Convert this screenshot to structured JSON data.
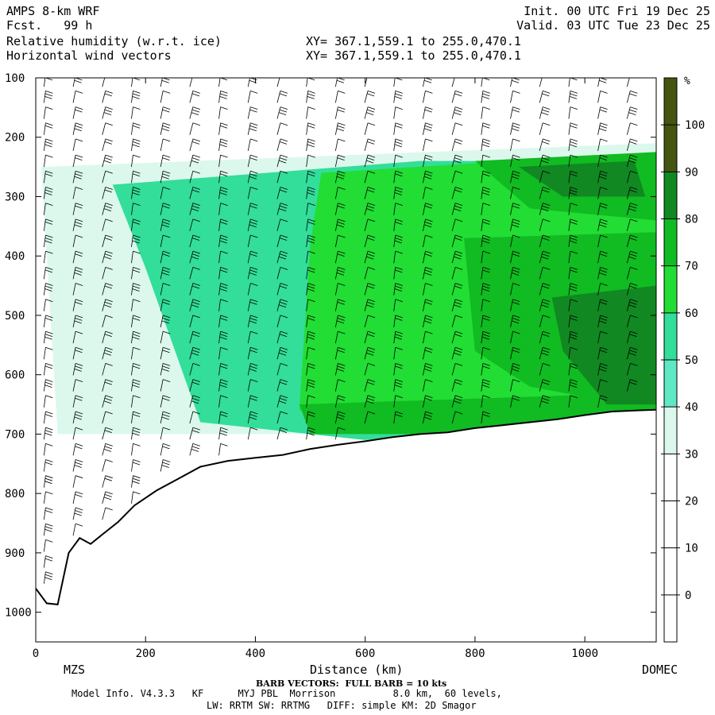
{
  "header": {
    "model": "AMPS 8-km WRF",
    "fcst": "Fcst.   99 h",
    "var1": "Relative humidity (w.r.t. ice)",
    "var2": "Horizontal wind vectors",
    "xy1": "XY= 367.1,559.1 to 255.0,470.1",
    "xy2": "XY= 367.1,559.1 to 255.0,470.1",
    "init": "Init. 00 UTC Fri 19 Dec 25",
    "valid": "Valid. 03 UTC Tue 23 Dec 25"
  },
  "footer": {
    "left_station": "MZS",
    "right_station": "DOMEC",
    "barb_note": "BARB VECTORS:  FULL BARB = 10 kts",
    "model_info": "Model Info. V4.3.3   KF      MYJ PBL  Morrison          8.0 km,  60 levels,",
    "physics": "LW: RRTM SW: RRTMG   DIFF: simple KM: 2D Smagor"
  },
  "colorbar": {
    "unit": "%",
    "ticks": [
      "0",
      "10",
      "20",
      "30",
      "40",
      "50",
      "60",
      "70",
      "80",
      "90",
      "100"
    ],
    "colors": [
      "#ffffff",
      "#ffffff",
      "#ffffff",
      "#ffffff",
      "#dcf8ec",
      "#5fe8c4",
      "#33dd9a",
      "#22dd33",
      "#11bb22",
      "#118822",
      "#445511"
    ]
  },
  "chart_data": {
    "type": "heatmap",
    "title": "Relative humidity (w.r.t. ice)",
    "xlabel": "Distance (km)",
    "ylabel": "",
    "xlim": [
      0,
      1130
    ],
    "ylim": [
      1050,
      100
    ],
    "xticks": [
      "0",
      "200",
      "400",
      "600",
      "800",
      "1000"
    ],
    "yticks": [
      "100",
      "200",
      "300",
      "400",
      "500",
      "600",
      "700",
      "800",
      "900",
      "1000"
    ],
    "terrain_km": [
      0,
      20,
      40,
      60,
      80,
      100,
      120,
      150,
      180,
      220,
      260,
      300,
      350,
      400,
      450,
      500,
      550,
      600,
      650,
      700,
      750,
      800,
      850,
      900,
      950,
      1000,
      1050,
      1100,
      1130
    ],
    "terrain_hpa": [
      960,
      985,
      987,
      900,
      875,
      885,
      870,
      848,
      820,
      795,
      775,
      755,
      745,
      740,
      735,
      725,
      718,
      712,
      705,
      700,
      697,
      690,
      685,
      680,
      675,
      668,
      662,
      660,
      659
    ],
    "regions": [
      {
        "rh": 45,
        "pts": [
          [
            10,
            250
          ],
          [
            1130,
            210
          ],
          [
            1130,
            700
          ],
          [
            40,
            700
          ]
        ]
      },
      {
        "rh": 65,
        "pts": [
          [
            140,
            280
          ],
          [
            700,
            240
          ],
          [
            1130,
            240
          ],
          [
            1130,
            660
          ],
          [
            600,
            710
          ],
          [
            300,
            680
          ],
          [
            200,
            420
          ]
        ]
      },
      {
        "rh": 75,
        "pts": [
          [
            520,
            260
          ],
          [
            1130,
            225
          ],
          [
            1130,
            660
          ],
          [
            700,
            700
          ],
          [
            480,
            660
          ],
          [
            500,
            380
          ]
        ]
      },
      {
        "rh": 85,
        "pts": [
          [
            800,
            240
          ],
          [
            1130,
            225
          ],
          [
            1130,
            340
          ],
          [
            900,
            320
          ]
        ]
      },
      {
        "rh": 85,
        "pts": [
          [
            780,
            370
          ],
          [
            1130,
            360
          ],
          [
            1130,
            660
          ],
          [
            900,
            620
          ],
          [
            800,
            560
          ]
        ]
      },
      {
        "rh": 85,
        "pts": [
          [
            480,
            650
          ],
          [
            1130,
            630
          ],
          [
            1130,
            660
          ],
          [
            700,
            700
          ],
          [
            500,
            700
          ]
        ]
      },
      {
        "rh": 95,
        "pts": [
          [
            880,
            250
          ],
          [
            1090,
            240
          ],
          [
            1110,
            300
          ],
          [
            960,
            300
          ]
        ]
      },
      {
        "rh": 95,
        "pts": [
          [
            940,
            470
          ],
          [
            1130,
            450
          ],
          [
            1130,
            650
          ],
          [
            1040,
            650
          ],
          [
            960,
            560
          ]
        ]
      }
    ]
  }
}
